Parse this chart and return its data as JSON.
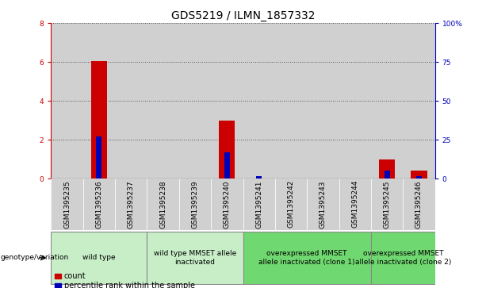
{
  "title": "GDS5219 / ILMN_1857332",
  "samples": [
    "GSM1395235",
    "GSM1395236",
    "GSM1395237",
    "GSM1395238",
    "GSM1395239",
    "GSM1395240",
    "GSM1395241",
    "GSM1395242",
    "GSM1395243",
    "GSM1395244",
    "GSM1395245",
    "GSM1395246"
  ],
  "count_values": [
    0,
    6.05,
    0,
    0,
    0,
    3.0,
    0,
    0,
    0,
    0,
    1.0,
    0.4
  ],
  "percentile_values": [
    0,
    27,
    0,
    0,
    0,
    17,
    1.5,
    0,
    0,
    0,
    5,
    1.5
  ],
  "ylim_left": [
    0,
    8
  ],
  "ylim_right": [
    0,
    100
  ],
  "yticks_left": [
    0,
    2,
    4,
    6,
    8
  ],
  "yticks_right": [
    0,
    25,
    50,
    75,
    100
  ],
  "ytick_labels_right": [
    "0",
    "25",
    "50",
    "75",
    "100%"
  ],
  "bar_color_count": "#cc0000",
  "bar_color_percentile": "#0000bb",
  "bar_width": 0.5,
  "groups": [
    {
      "label": "wild type",
      "cols": [
        0,
        1,
        2
      ],
      "color": "#c8eec8"
    },
    {
      "label": "wild type MMSET allele\ninactivated",
      "cols": [
        3,
        4,
        5
      ],
      "color": "#c8eec8"
    },
    {
      "label": "overexpressed MMSET\nallele inactivated (clone 1)",
      "cols": [
        6,
        7,
        8,
        9
      ],
      "color": "#70d870"
    },
    {
      "label": "overexpressed MMSET\nallele inactivated (clone 2)",
      "cols": [
        10,
        11
      ],
      "color": "#70d870"
    }
  ],
  "group_row_label": "genotype/variation",
  "legend_count_label": "count",
  "legend_percentile_label": "percentile rank within the sample",
  "dotted_grid_color": "#555555",
  "col_bg_color": "#d0d0d0",
  "title_fontsize": 10,
  "tick_fontsize": 6.5,
  "group_fontsize": 6.5,
  "legend_fontsize": 7,
  "left_ytick_color": "#cc0000",
  "right_ytick_color": "#0000bb"
}
